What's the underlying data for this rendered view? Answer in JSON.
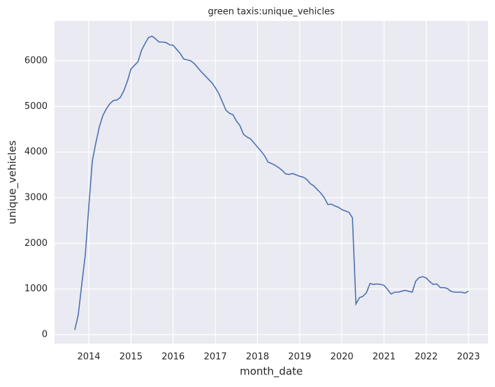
{
  "chart_data": {
    "type": "line",
    "title": "green taxis:unique_vehicles",
    "x_label": "month_date",
    "y_label": "unique_vehicles",
    "x": [
      2013.667,
      2013.75,
      2013.833,
      2013.917,
      2014,
      2014.083,
      2014.167,
      2014.25,
      2014.333,
      2014.417,
      2014.5,
      2014.583,
      2014.667,
      2014.75,
      2014.833,
      2014.917,
      2015,
      2015.083,
      2015.167,
      2015.25,
      2015.333,
      2015.417,
      2015.5,
      2015.583,
      2015.667,
      2015.75,
      2015.833,
      2015.917,
      2016,
      2016.083,
      2016.167,
      2016.25,
      2016.333,
      2016.417,
      2016.5,
      2016.583,
      2016.667,
      2016.75,
      2016.833,
      2016.917,
      2017,
      2017.083,
      2017.167,
      2017.25,
      2017.333,
      2017.417,
      2017.5,
      2017.583,
      2017.667,
      2017.75,
      2017.833,
      2017.917,
      2018,
      2018.083,
      2018.167,
      2018.25,
      2018.333,
      2018.417,
      2018.5,
      2018.583,
      2018.667,
      2018.75,
      2018.833,
      2018.917,
      2019,
      2019.083,
      2019.167,
      2019.25,
      2019.333,
      2019.417,
      2019.5,
      2019.583,
      2019.667,
      2019.75,
      2019.833,
      2019.917,
      2020,
      2020.083,
      2020.167,
      2020.25,
      2020.333,
      2020.417,
      2020.5,
      2020.583,
      2020.667,
      2020.75,
      2020.833,
      2020.917,
      2021,
      2021.083,
      2021.167,
      2021.25,
      2021.333,
      2021.417,
      2021.5,
      2021.583,
      2021.667,
      2021.75,
      2021.833,
      2021.917,
      2022,
      2022.083,
      2022.167,
      2022.25,
      2022.333,
      2022.417,
      2022.5,
      2022.583,
      2022.667,
      2022.75,
      2022.833,
      2022.917,
      2023
    ],
    "series": [
      {
        "color": "#4c72b0",
        "values": [
          100,
          430,
          1100,
          1750,
          2800,
          3800,
          4200,
          4550,
          4800,
          4950,
          5060,
          5130,
          5140,
          5200,
          5350,
          5560,
          5820,
          5900,
          5980,
          6230,
          6380,
          6510,
          6540,
          6480,
          6410,
          6410,
          6400,
          6350,
          6340,
          6250,
          6160,
          6040,
          6020,
          6000,
          5940,
          5850,
          5760,
          5680,
          5600,
          5520,
          5410,
          5280,
          5100,
          4920,
          4850,
          4820,
          4680,
          4580,
          4390,
          4330,
          4290,
          4200,
          4110,
          4020,
          3920,
          3780,
          3750,
          3710,
          3660,
          3600,
          3520,
          3510,
          3530,
          3500,
          3470,
          3450,
          3400,
          3310,
          3260,
          3180,
          3100,
          3000,
          2850,
          2860,
          2820,
          2790,
          2740,
          2710,
          2680,
          2560,
          670,
          810,
          840,
          920,
          1120,
          1100,
          1110,
          1100,
          1080,
          990,
          890,
          930,
          930,
          950,
          970,
          950,
          930,
          1170,
          1250,
          1270,
          1240,
          1160,
          1100,
          1110,
          1030,
          1030,
          1010,
          950,
          930,
          930,
          930,
          910,
          950
        ]
      }
    ],
    "xlim": [
      2013.188,
      2023.464
    ],
    "xticks": [
      2014,
      2015,
      2016,
      2017,
      2018,
      2019,
      2020,
      2021,
      2022,
      2023
    ],
    "ylim": [
      -199,
      6873
    ],
    "yticks": [
      0,
      1000,
      2000,
      3000,
      4000,
      5000,
      6000
    ],
    "grid": true
  }
}
